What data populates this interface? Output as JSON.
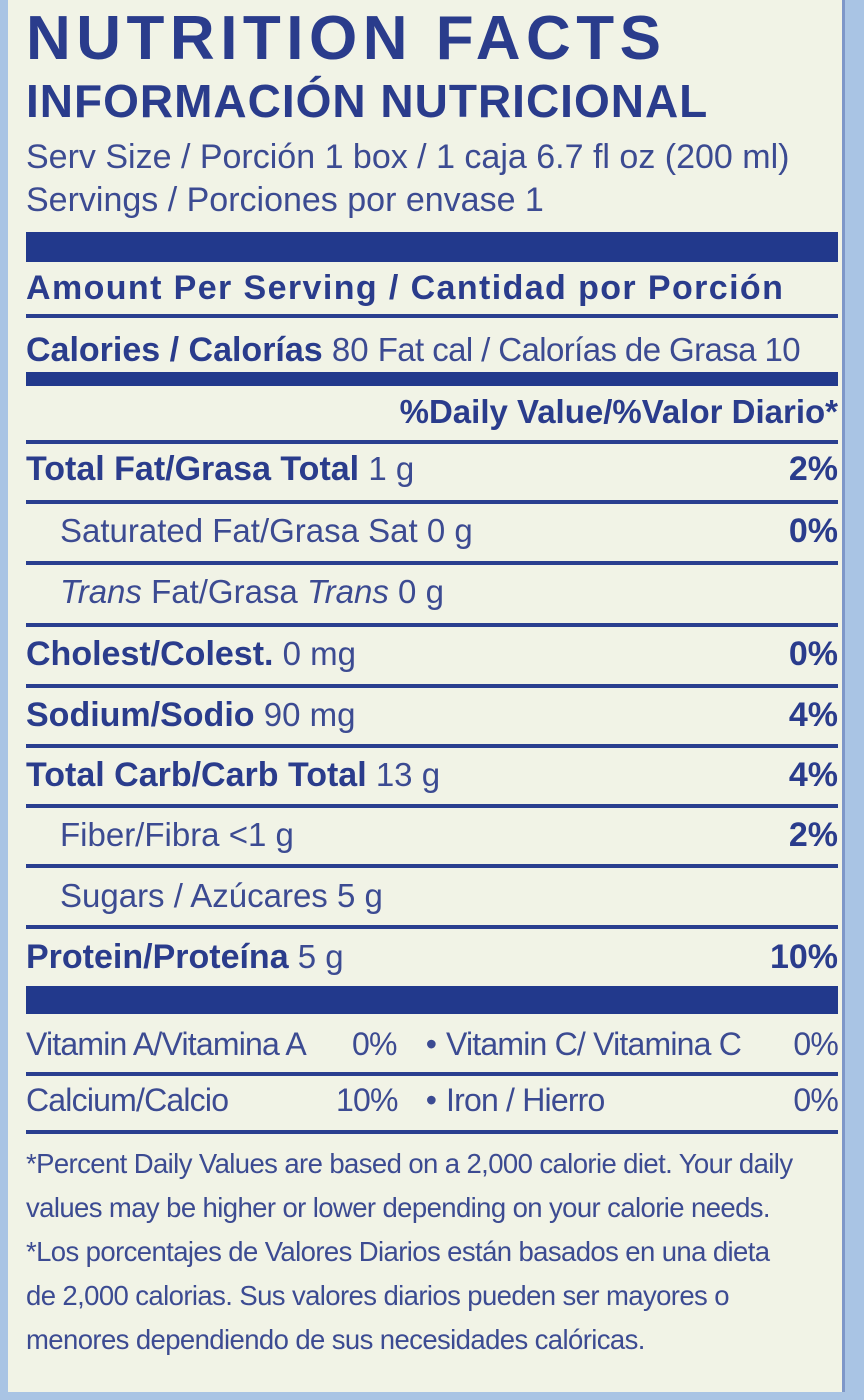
{
  "title": "NUTRITION FACTS",
  "subtitle": "INFORMACIÓN NUTRICIONAL",
  "serving_size": "Serv Size / Porción 1 box / 1 caja 6.7 fl oz (200 ml)",
  "servings": "Servings / Porciones por envase 1",
  "amount_per_serving": "Amount Per Serving / Cantidad por Porción",
  "calories": {
    "label": "Calories / Calorías",
    "value": "80",
    "fat_cal": "Fat cal / Calorías de Grasa 10"
  },
  "daily_value_header": "%Daily Value/%Valor Diario*",
  "nutrients": [
    {
      "label": "Total Fat/Grasa Total",
      "amount": "1 g",
      "dv": "2%"
    },
    {
      "label": "Saturated Fat/Grasa Sat",
      "amount": "0 g",
      "dv": "0%"
    },
    {
      "label_italic_1": "Trans",
      "label_mid": "Fat/Grasa",
      "label_italic_2": "Trans",
      "amount": "0 g",
      "dv": ""
    },
    {
      "label": "Cholest/Colest.",
      "amount": "0 mg",
      "dv": "0%"
    },
    {
      "label": "Sodium/Sodio",
      "amount": "90 mg",
      "dv": "4%"
    },
    {
      "label": "Total Carb/Carb Total",
      "amount": "13 g",
      "dv": "4%"
    },
    {
      "label": "Fiber/Fibra",
      "amount": "<1 g",
      "dv": "2%"
    },
    {
      "label": "Sugars / Azúcares",
      "amount": "5 g",
      "dv": ""
    },
    {
      "label": "Protein/Proteína",
      "amount": "5 g",
      "dv": "10%"
    }
  ],
  "vitamins": {
    "vitamin_a": "Vitamin A/Vitamina A",
    "vitamin_a_dv": "0%",
    "vitamin_c": "Vitamin C/ Vitamina C",
    "vitamin_c_dv": "0%",
    "calcium": "Calcium/Calcio",
    "calcium_dv": "10%",
    "iron": "Iron / Hierro",
    "iron_dv": "0%",
    "bullet": "•"
  },
  "footnote_en": [
    "*Percent Daily Values are based on a 2,000 calorie diet. Your daily",
    "values may be higher or lower depending on your calorie needs."
  ],
  "footnote_es": [
    "*Los porcentajes de Valores Diarios están basados en una dieta",
    "de 2,000 calorias. Sus valores diarios pueden ser mayores o",
    "menores dependiendo de sus necesidades calóricas."
  ],
  "colors": {
    "ink": "#2a3c8c",
    "bar": "#22398c",
    "label_bg": "#f1f3e6",
    "package_bg": "#a9c4e4"
  }
}
